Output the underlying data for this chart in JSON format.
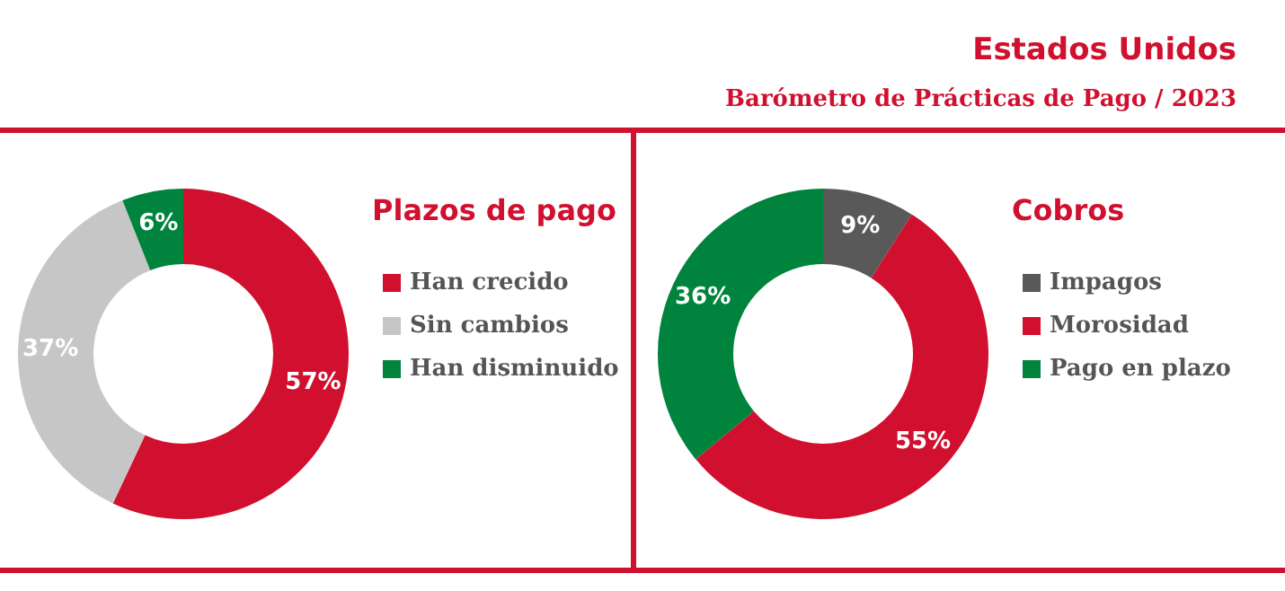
{
  "chart_data": [
    {
      "type": "other",
      "title": "Estados Unidos",
      "subtitle": "Barómetro de Prácticas de Pago / 2023"
    },
    {
      "type": "donut",
      "title": "Plazos de pago",
      "categories": [
        "Han crecido",
        "Sin cambios",
        "Han disminuido"
      ],
      "values": [
        57,
        37,
        6
      ],
      "colors": [
        "#d0102e",
        "#c6c6c6",
        "#00843d"
      ],
      "value_labels": [
        "57%",
        "37%",
        "6%"
      ],
      "legend": "right"
    },
    {
      "type": "donut",
      "title": "Cobros",
      "categories": [
        "Impagos",
        "Morosidad",
        "Pago en plazo"
      ],
      "values": [
        9,
        55,
        36
      ],
      "colors": [
        "#595959",
        "#d0102e",
        "#00843d"
      ],
      "value_labels": [
        "9%",
        "55%",
        "36%"
      ],
      "legend": "right"
    }
  ]
}
